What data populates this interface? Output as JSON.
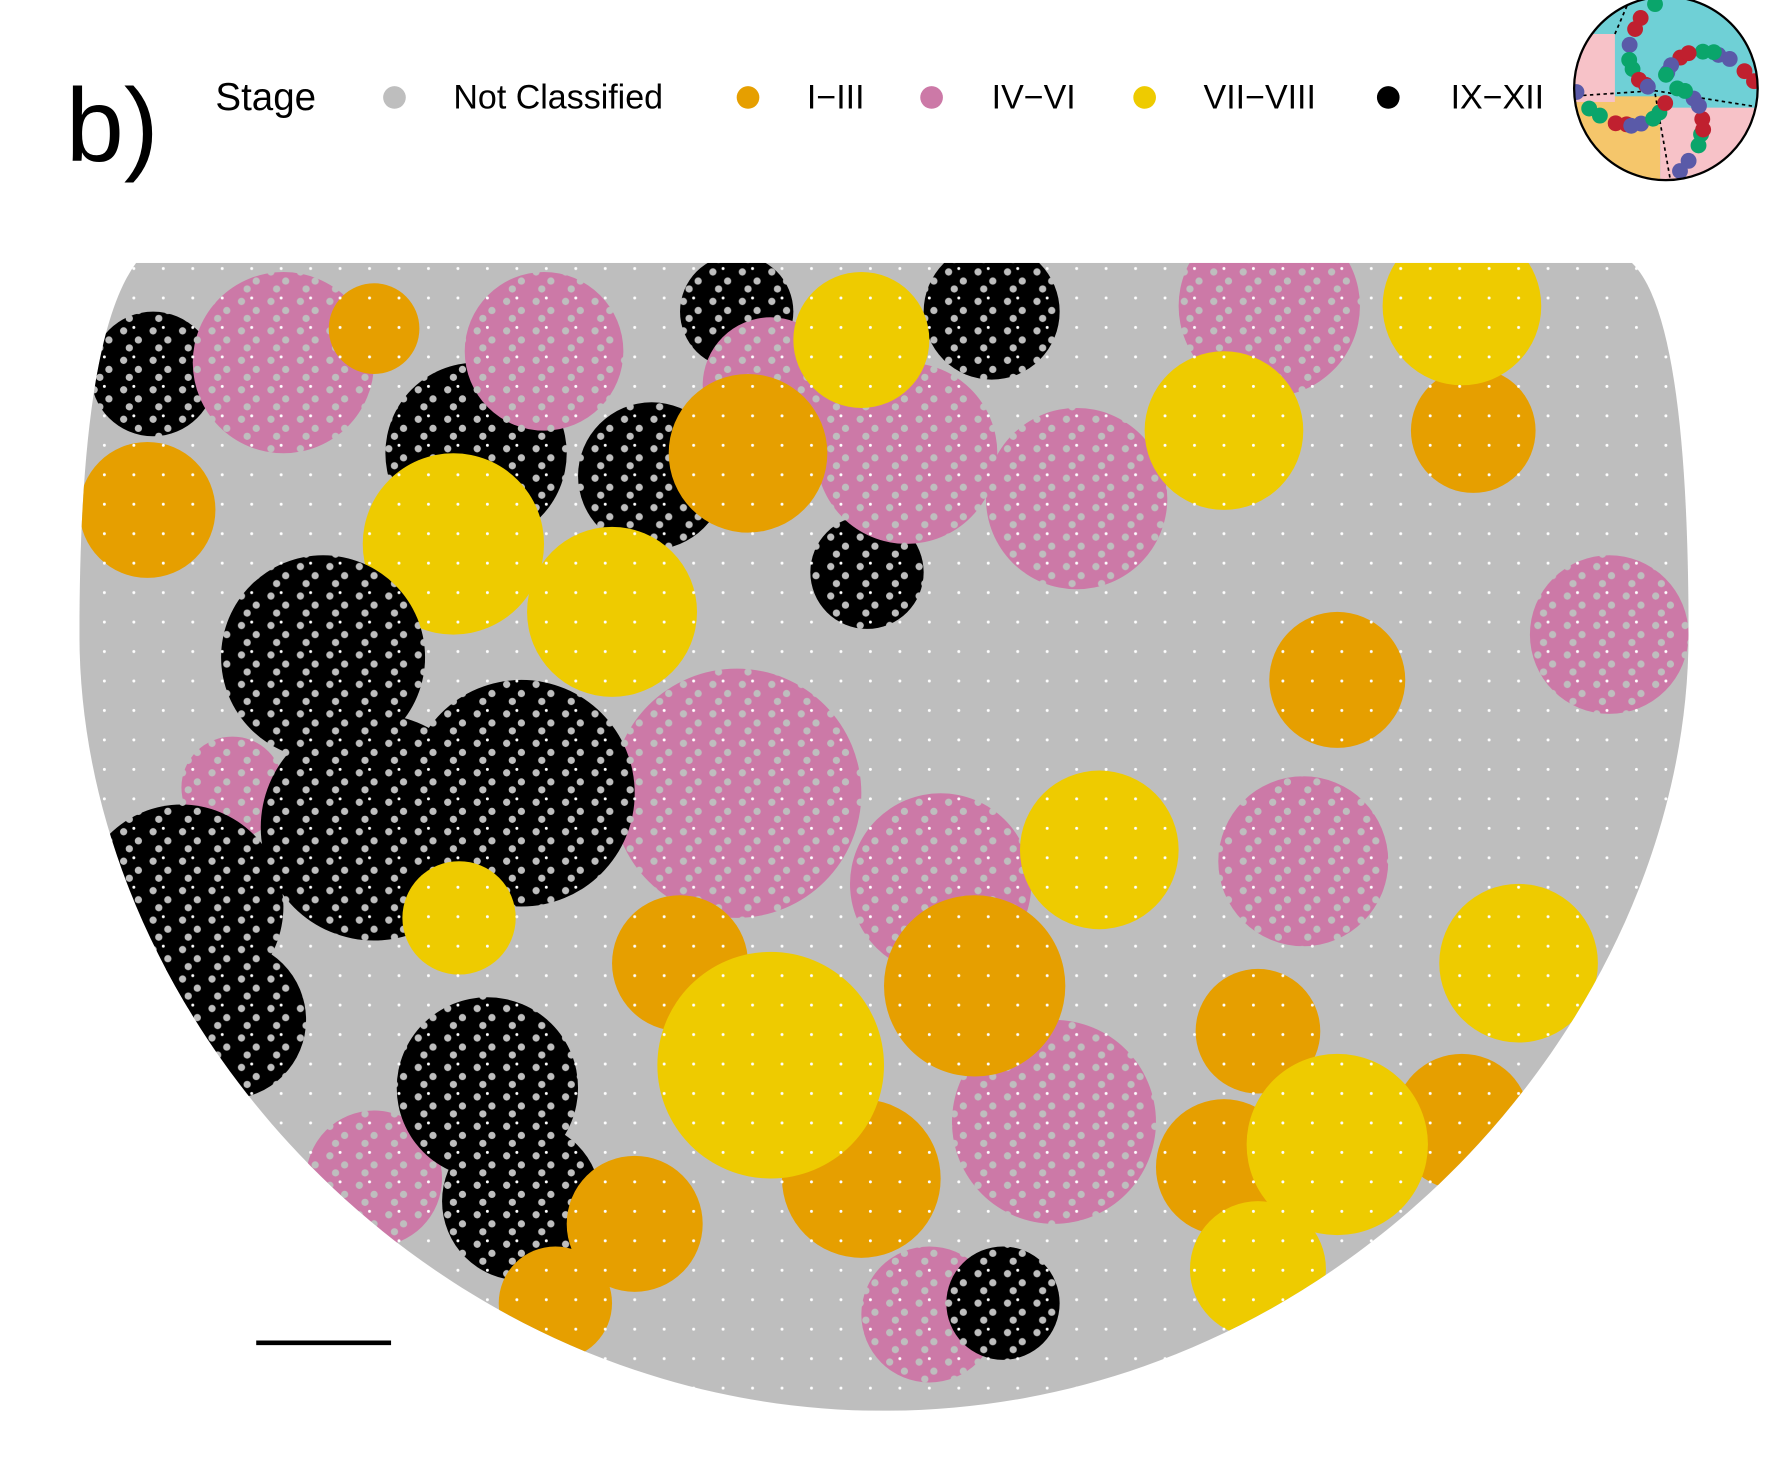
{
  "panel_label": "b)",
  "legend": {
    "title": "Stage",
    "items": [
      {
        "label": "Not Classified",
        "color": "#bebebe"
      },
      {
        "label": "I−III",
        "color": "#e69f00"
      },
      {
        "label": "IV−VI",
        "color": "#cc79a7"
      },
      {
        "label": "VII−VIII",
        "color": "#eecb00"
      },
      {
        "label": "IX−XII",
        "color": "#000000"
      }
    ]
  }
}
